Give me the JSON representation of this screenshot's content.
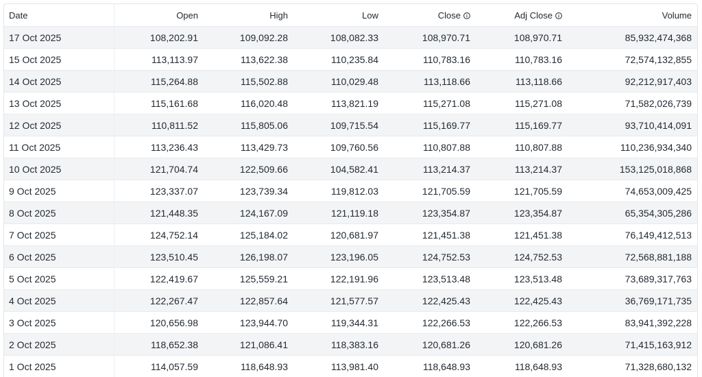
{
  "table": {
    "headers": {
      "date": "Date",
      "open": "Open",
      "high": "High",
      "low": "Low",
      "close": "Close",
      "adj_close": "Adj Close",
      "volume": "Volume"
    },
    "icons": {
      "close_info": "info-icon",
      "adj_close_info": "info-icon"
    },
    "rows": [
      [
        "17 Oct 2025",
        "108,202.91",
        "109,092.28",
        "108,082.33",
        "108,970.71",
        "108,970.71",
        "85,932,474,368"
      ],
      [
        "15 Oct 2025",
        "113,113.97",
        "113,622.38",
        "110,235.84",
        "110,783.16",
        "110,783.16",
        "72,574,132,855"
      ],
      [
        "14 Oct 2025",
        "115,264.88",
        "115,502.88",
        "110,029.48",
        "113,118.66",
        "113,118.66",
        "92,212,917,403"
      ],
      [
        "13 Oct 2025",
        "115,161.68",
        "116,020.48",
        "113,821.19",
        "115,271.08",
        "115,271.08",
        "71,582,026,739"
      ],
      [
        "12 Oct 2025",
        "110,811.52",
        "115,805.06",
        "109,715.54",
        "115,169.77",
        "115,169.77",
        "93,710,414,091"
      ],
      [
        "11 Oct 2025",
        "113,236.43",
        "113,429.73",
        "109,760.56",
        "110,807.88",
        "110,807.88",
        "110,236,934,340"
      ],
      [
        "10 Oct 2025",
        "121,704.74",
        "122,509.66",
        "104,582.41",
        "113,214.37",
        "113,214.37",
        "153,125,018,868"
      ],
      [
        "9 Oct 2025",
        "123,337.07",
        "123,739.34",
        "119,812.03",
        "121,705.59",
        "121,705.59",
        "74,653,009,425"
      ],
      [
        "8 Oct 2025",
        "121,448.35",
        "124,167.09",
        "121,119.18",
        "123,354.87",
        "123,354.87",
        "65,354,305,286"
      ],
      [
        "7 Oct 2025",
        "124,752.14",
        "125,184.02",
        "120,681.97",
        "121,451.38",
        "121,451.38",
        "76,149,412,513"
      ],
      [
        "6 Oct 2025",
        "123,510.45",
        "126,198.07",
        "123,196.05",
        "124,752.53",
        "124,752.53",
        "72,568,881,188"
      ],
      [
        "5 Oct 2025",
        "122,419.67",
        "125,559.21",
        "122,191.96",
        "123,513.48",
        "123,513.48",
        "73,689,317,763"
      ],
      [
        "4 Oct 2025",
        "122,267.47",
        "122,857.64",
        "121,577.57",
        "122,425.43",
        "122,425.43",
        "36,769,171,735"
      ],
      [
        "3 Oct 2025",
        "120,656.98",
        "123,944.70",
        "119,344.31",
        "122,266.53",
        "122,266.53",
        "83,941,392,228"
      ],
      [
        "2 Oct 2025",
        "118,652.38",
        "121,086.41",
        "118,383.16",
        "120,681.26",
        "120,681.26",
        "71,415,163,912"
      ],
      [
        "1 Oct 2025",
        "114,057.59",
        "118,648.93",
        "113,981.40",
        "118,648.93",
        "118,648.93",
        "71,328,680,132"
      ]
    ]
  }
}
